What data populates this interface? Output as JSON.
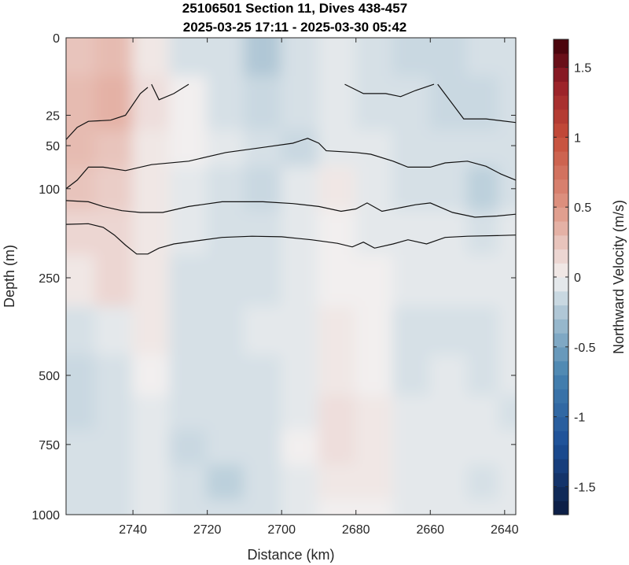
{
  "chart_data": {
    "type": "heatmap",
    "title": "25106501 Section 11, Dives 438-457",
    "subtitle": "2025-03-25 17:11 - 2025-03-30 05:42",
    "xlabel": "Distance (km)",
    "ylabel": "Depth (m)",
    "colorbar_label": "Northward Velocity (m/s)",
    "x_direction": "reversed",
    "xlim": [
      2758,
      2637
    ],
    "ylim": [
      0,
      1000
    ],
    "x_ticks": [
      2740,
      2720,
      2700,
      2680,
      2660,
      2640
    ],
    "y_ticks": [
      0,
      25,
      50,
      100,
      250,
      500,
      750,
      1000
    ],
    "y_tick_labels": [
      "0",
      "25",
      "50",
      "100",
      "250",
      "500",
      "750",
      "1000"
    ],
    "y_scale": "stretched (upper 250 m expanded)",
    "colorbar_ticks": [
      1.5,
      1,
      0.5,
      0,
      -0.5,
      -1,
      -1.5
    ],
    "colorbar_tick_labels": [
      "1.5",
      "1",
      "0.5",
      "0",
      "-0.5",
      "-1",
      "-1.5"
    ],
    "clim": [
      -1.7,
      1.7
    ],
    "colormap": "diverging blue-white-red",
    "colors": {
      "positive_max": "#3d0008",
      "positive_mid": "#c84a3b",
      "zero": "#f2efef",
      "negative_mid": "#5f9bbd",
      "negative_max": "#0b1a3e"
    },
    "velocity_field": {
      "x": [
        2755,
        2745,
        2735,
        2725,
        2715,
        2705,
        2695,
        2685,
        2675,
        2665,
        2655,
        2645,
        2638
      ],
      "depth": [
        0,
        25,
        50,
        100,
        175,
        250,
        400,
        500,
        650,
        750,
        900,
        1000
      ],
      "values": [
        [
          0.25,
          0.3,
          0.05,
          -0.1,
          -0.1,
          -0.25,
          -0.1,
          -0.05,
          -0.1,
          -0.15,
          -0.15,
          -0.1,
          -0.1
        ],
        [
          0.3,
          0.35,
          0.1,
          0.0,
          -0.1,
          -0.15,
          -0.1,
          -0.05,
          -0.1,
          -0.1,
          -0.15,
          -0.15,
          -0.1
        ],
        [
          0.3,
          0.25,
          0.05,
          0.0,
          -0.05,
          -0.1,
          -0.15,
          -0.05,
          -0.05,
          -0.1,
          -0.1,
          -0.1,
          -0.1
        ],
        [
          0.25,
          0.2,
          0.05,
          -0.05,
          -0.1,
          -0.15,
          -0.05,
          0.05,
          -0.05,
          -0.1,
          -0.1,
          -0.2,
          -0.1
        ],
        [
          0.15,
          0.15,
          0.05,
          -0.05,
          -0.1,
          -0.1,
          -0.05,
          0.0,
          -0.05,
          -0.05,
          -0.05,
          -0.1,
          -0.05
        ],
        [
          0.05,
          0.15,
          0.05,
          -0.1,
          -0.1,
          -0.1,
          -0.05,
          0.0,
          0.0,
          -0.05,
          -0.05,
          -0.05,
          -0.05
        ],
        [
          -0.1,
          -0.05,
          0.05,
          -0.1,
          -0.1,
          -0.05,
          -0.05,
          0.05,
          0.0,
          -0.1,
          -0.1,
          -0.1,
          -0.05
        ],
        [
          -0.15,
          -0.1,
          0.0,
          -0.1,
          -0.1,
          -0.1,
          -0.05,
          0.05,
          0.0,
          -0.1,
          -0.05,
          -0.1,
          -0.05
        ],
        [
          -0.15,
          -0.1,
          -0.05,
          -0.1,
          -0.1,
          -0.1,
          -0.05,
          0.1,
          0.05,
          -0.05,
          -0.05,
          -0.05,
          -0.1
        ],
        [
          -0.1,
          -0.1,
          -0.05,
          -0.15,
          -0.1,
          -0.1,
          0.0,
          0.1,
          0.05,
          -0.05,
          -0.05,
          -0.05,
          -0.05
        ],
        [
          -0.1,
          -0.1,
          -0.05,
          -0.1,
          -0.2,
          -0.1,
          -0.05,
          0.05,
          0.05,
          -0.05,
          -0.05,
          -0.1,
          -0.05
        ],
        [
          -0.1,
          -0.1,
          -0.05,
          -0.1,
          -0.1,
          -0.1,
          -0.05,
          0.0,
          0.0,
          -0.05,
          -0.05,
          -0.05,
          -0.05
        ]
      ]
    },
    "contour_lines": [
      {
        "segments": [
          [
            [
              2758,
              45
            ],
            [
              2755,
              35
            ],
            [
              2752,
              30
            ],
            [
              2746,
              29
            ],
            [
              2742,
              25
            ],
            [
              2738,
              18
            ],
            [
              2736,
              16
            ]
          ],
          [
            [
              2735,
              15
            ],
            [
              2733,
              20
            ],
            [
              2729,
              18
            ],
            [
              2725,
              15
            ]
          ],
          [
            [
              2683,
              15
            ],
            [
              2678,
              18
            ],
            [
              2672,
              18
            ],
            [
              2668,
              19
            ],
            [
              2664,
              17
            ],
            [
              2659,
              15
            ]
          ],
          [
            [
              2658,
              15
            ],
            [
              2651,
              28
            ],
            [
              2645,
              28
            ],
            [
              2637,
              31
            ]
          ]
        ]
      },
      {
        "segments": [
          [
            [
              2758,
              100
            ],
            [
              2755,
              90
            ],
            [
              2752,
              75
            ],
            [
              2748,
              75
            ],
            [
              2742,
              79
            ],
            [
              2735,
              72
            ],
            [
              2725,
              68
            ],
            [
              2715,
              58
            ],
            [
              2705,
              52
            ],
            [
              2697,
              48
            ],
            [
              2693,
              44
            ],
            [
              2690,
              48
            ],
            [
              2688,
              56
            ],
            [
              2680,
              58
            ],
            [
              2676,
              60
            ],
            [
              2670,
              68
            ],
            [
              2666,
              75
            ],
            [
              2660,
              75
            ],
            [
              2656,
              70
            ],
            [
              2650,
              68
            ],
            [
              2645,
              74
            ],
            [
              2641,
              83
            ],
            [
              2637,
              90
            ]
          ]
        ]
      },
      {
        "segments": [
          [
            [
              2758,
              120
            ],
            [
              2752,
              122
            ],
            [
              2748,
              130
            ],
            [
              2743,
              137
            ],
            [
              2738,
              140
            ],
            [
              2732,
              140
            ],
            [
              2725,
              130
            ],
            [
              2716,
              122
            ],
            [
              2705,
              122
            ],
            [
              2697,
              125
            ],
            [
              2690,
              130
            ],
            [
              2684,
              138
            ],
            [
              2680,
              134
            ],
            [
              2677,
              124
            ],
            [
              2673,
              138
            ],
            [
              2668,
              132
            ],
            [
              2664,
              127
            ],
            [
              2660,
              124
            ],
            [
              2654,
              140
            ],
            [
              2648,
              148
            ],
            [
              2642,
              146
            ],
            [
              2637,
              143
            ]
          ]
        ]
      },
      {
        "segments": [
          [
            [
              2758,
              160
            ],
            [
              2752,
              159
            ],
            [
              2748,
              165
            ],
            [
              2745,
              178
            ],
            [
              2742,
              195
            ],
            [
              2739,
              210
            ],
            [
              2736,
              210
            ],
            [
              2733,
              200
            ],
            [
              2729,
              193
            ],
            [
              2722,
              187
            ],
            [
              2716,
              182
            ],
            [
              2708,
              180
            ],
            [
              2700,
              181
            ],
            [
              2692,
              186
            ],
            [
              2685,
              192
            ],
            [
              2681,
              198
            ],
            [
              2678,
              190
            ],
            [
              2675,
              200
            ],
            [
              2670,
              193
            ],
            [
              2666,
              186
            ],
            [
              2661,
              193
            ],
            [
              2656,
              182
            ],
            [
              2650,
              180
            ],
            [
              2642,
              179
            ],
            [
              2637,
              178
            ]
          ]
        ]
      }
    ]
  }
}
